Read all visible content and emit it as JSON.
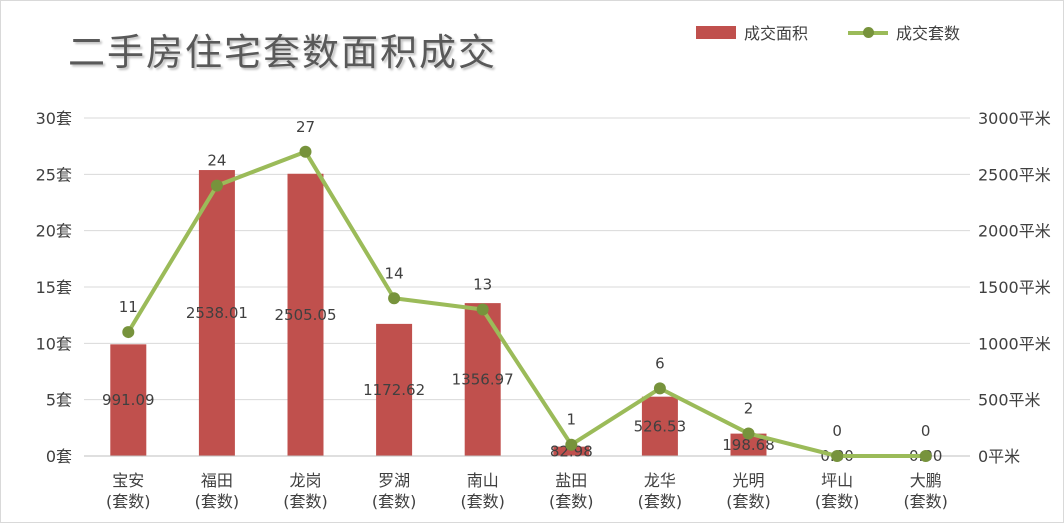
{
  "chart_data": {
    "type": "bar",
    "title": "二手房住宅套数面积成交",
    "categories": [
      "宝安",
      "福田",
      "龙岗",
      "罗湖",
      "南山",
      "盐田",
      "龙华",
      "光明",
      "坪山",
      "大鹏"
    ],
    "category_suffix": "(套数)",
    "series": [
      {
        "name": "成交面积",
        "type": "bar",
        "axis": "right",
        "color": "#c0504d",
        "values": [
          991.09,
          2538.01,
          2505.05,
          1172.62,
          1356.97,
          82.98,
          526.53,
          198.68,
          0.0,
          0.0
        ],
        "labels": [
          "991.09",
          "2538.01",
          "2505.05",
          "1172.62",
          "1356.97",
          "82.98",
          "526.53",
          "198.68",
          "0.00",
          "0.00"
        ]
      },
      {
        "name": "成交套数",
        "type": "line",
        "axis": "left",
        "color": "#9bbb59",
        "marker_color": "#77933c",
        "values": [
          11,
          24,
          27,
          14,
          13,
          1,
          6,
          2,
          0,
          0
        ]
      }
    ],
    "y_left": {
      "ylim": [
        0,
        30
      ],
      "ticks": [
        "0套",
        "5套",
        "10套",
        "15套",
        "20套",
        "25套",
        "30套"
      ]
    },
    "y_right": {
      "ylim": [
        0,
        3000
      ],
      "ticks": [
        "0平米",
        "500平米",
        "1000平米",
        "1500平米",
        "2000平米",
        "2500平米",
        "3000平米"
      ]
    },
    "grid": true,
    "legend_position": "top-right"
  }
}
